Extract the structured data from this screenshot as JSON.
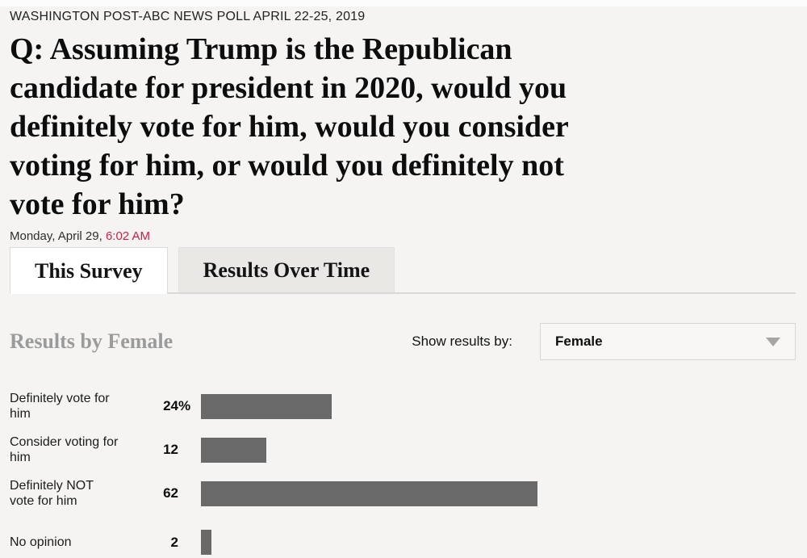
{
  "page": {
    "kicker": "WASHINGTON POST-ABC NEWS POLL APRIL 22-25, 2019",
    "headline": "Q: Assuming Trump is the Republican candidate for president in 2020, would you definitely vote for him, would you consider voting for him, or would you definitely not vote for him?",
    "date_prefix": "Monday, April 29, ",
    "time": "6:02 AM"
  },
  "tabs": [
    {
      "label": "This Survey",
      "active": true
    },
    {
      "label": "Results Over Time",
      "active": false
    }
  ],
  "results": {
    "section_title": "Results by Female",
    "filter_label": "Show results by:",
    "dropdown_value": "Female",
    "dropdown_icon": "chevron-down-triangle"
  },
  "chart_data": {
    "type": "bar",
    "orientation": "horizontal",
    "title": "Results by Female",
    "categories": [
      "Definitely vote for him",
      "Consider voting for him",
      "Definitely NOT vote for him",
      "No opinion"
    ],
    "values": [
      24,
      12,
      62,
      2
    ],
    "value_labels": [
      "24%",
      "12",
      "62",
      "2"
    ],
    "unit": "percent",
    "xlim": [
      0,
      100
    ],
    "grid": false,
    "bar_color": "#696969"
  },
  "colors": {
    "background": "#f5f4f2",
    "accent_red": "#cb2048",
    "bar_gray": "#696969",
    "muted_title_gray": "#9b9b9b",
    "inactive_tab_bg": "#e9e8e5"
  }
}
